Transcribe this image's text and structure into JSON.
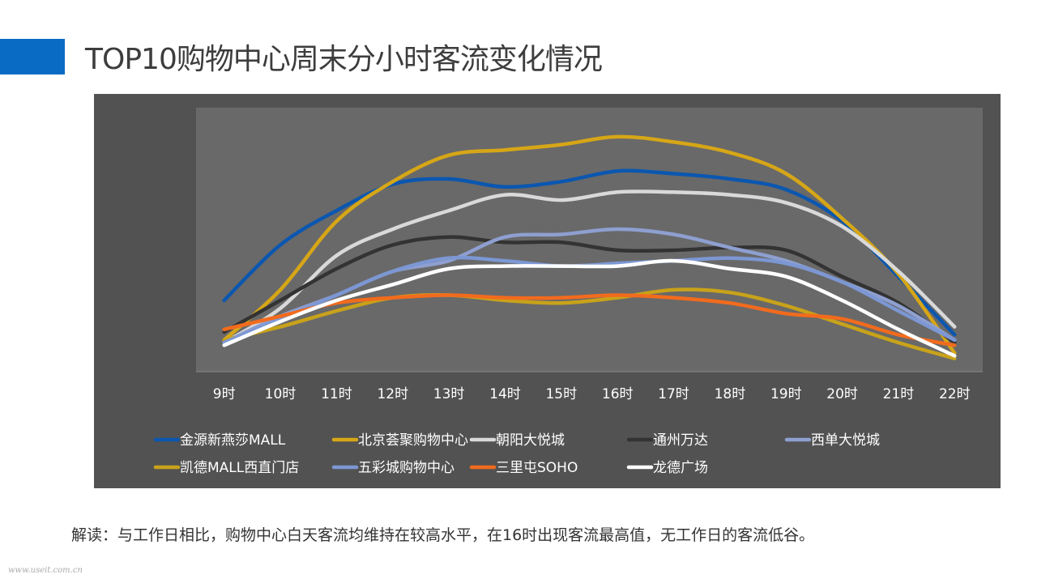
{
  "title": "TOP10购物中心周末分小时客流变化情况",
  "note": "解读：与工作日相比，购物中心白天客流均维持在较高水平，在16时出现客流最高值，无工作日的客流低谷。",
  "watermark": "www.useit.com.cn",
  "colors": {
    "accent": "#0a6bc4",
    "panel": "#525252",
    "plot_area": "#696969"
  },
  "chart_data": {
    "type": "line",
    "title": "",
    "xlabel": "",
    "ylabel": "",
    "ylim": [
      0,
      100
    ],
    "grid": false,
    "legend_position": "bottom",
    "categories": [
      "9时",
      "10时",
      "11时",
      "12时",
      "13时",
      "14时",
      "15时",
      "16时",
      "17时",
      "18时",
      "19时",
      "20时",
      "21时",
      "22时"
    ],
    "series": [
      {
        "name": "金源新燕莎MALL",
        "color": "#0b57b0",
        "values": [
          27,
          48,
          61,
          71,
          73,
          70,
          72,
          76,
          75,
          73,
          69,
          57,
          36,
          14
        ]
      },
      {
        "name": "北京荟聚购物中心",
        "color": "#d6a617",
        "values": [
          12,
          31,
          57,
          72,
          82,
          84,
          86,
          89,
          87,
          83,
          75,
          58,
          37,
          7
        ]
      },
      {
        "name": "朝阳大悦城",
        "color": "#d9d9d9",
        "values": [
          11,
          24,
          44,
          54,
          61,
          67,
          65,
          68,
          68,
          67,
          64,
          55,
          38,
          17
        ]
      },
      {
        "name": "通州万达",
        "color": "#333333",
        "values": [
          15,
          27,
          39,
          48,
          51,
          49,
          49,
          46,
          46,
          47,
          46,
          36,
          26,
          11
        ]
      },
      {
        "name": "西单大悦城",
        "color": "#8e9fd0",
        "values": [
          11,
          21,
          29,
          38,
          42,
          51,
          52,
          54,
          52,
          47,
          42,
          34,
          25,
          12
        ]
      },
      {
        "name": "凯德MALL西直门店",
        "color": "#c8a21a",
        "values": [
          12,
          17,
          23,
          28,
          29,
          27,
          26,
          28,
          31,
          30,
          25,
          18,
          11,
          5
        ]
      },
      {
        "name": "五彩城购物中心",
        "color": "#7c97d3",
        "values": [
          11,
          20,
          29,
          38,
          43,
          42,
          40,
          41,
          42,
          43,
          41,
          34,
          23,
          12
        ]
      },
      {
        "name": "三里屯SOHO",
        "color": "#f26b1d",
        "values": [
          16,
          21,
          26,
          28,
          29,
          28,
          28,
          29,
          28,
          26,
          22,
          20,
          14,
          10
        ]
      },
      {
        "name": "龙德广场",
        "color": "#ffffff",
        "values": [
          10,
          19,
          27,
          33,
          39,
          40,
          40,
          40,
          42,
          39,
          36,
          27,
          16,
          6
        ]
      }
    ]
  }
}
